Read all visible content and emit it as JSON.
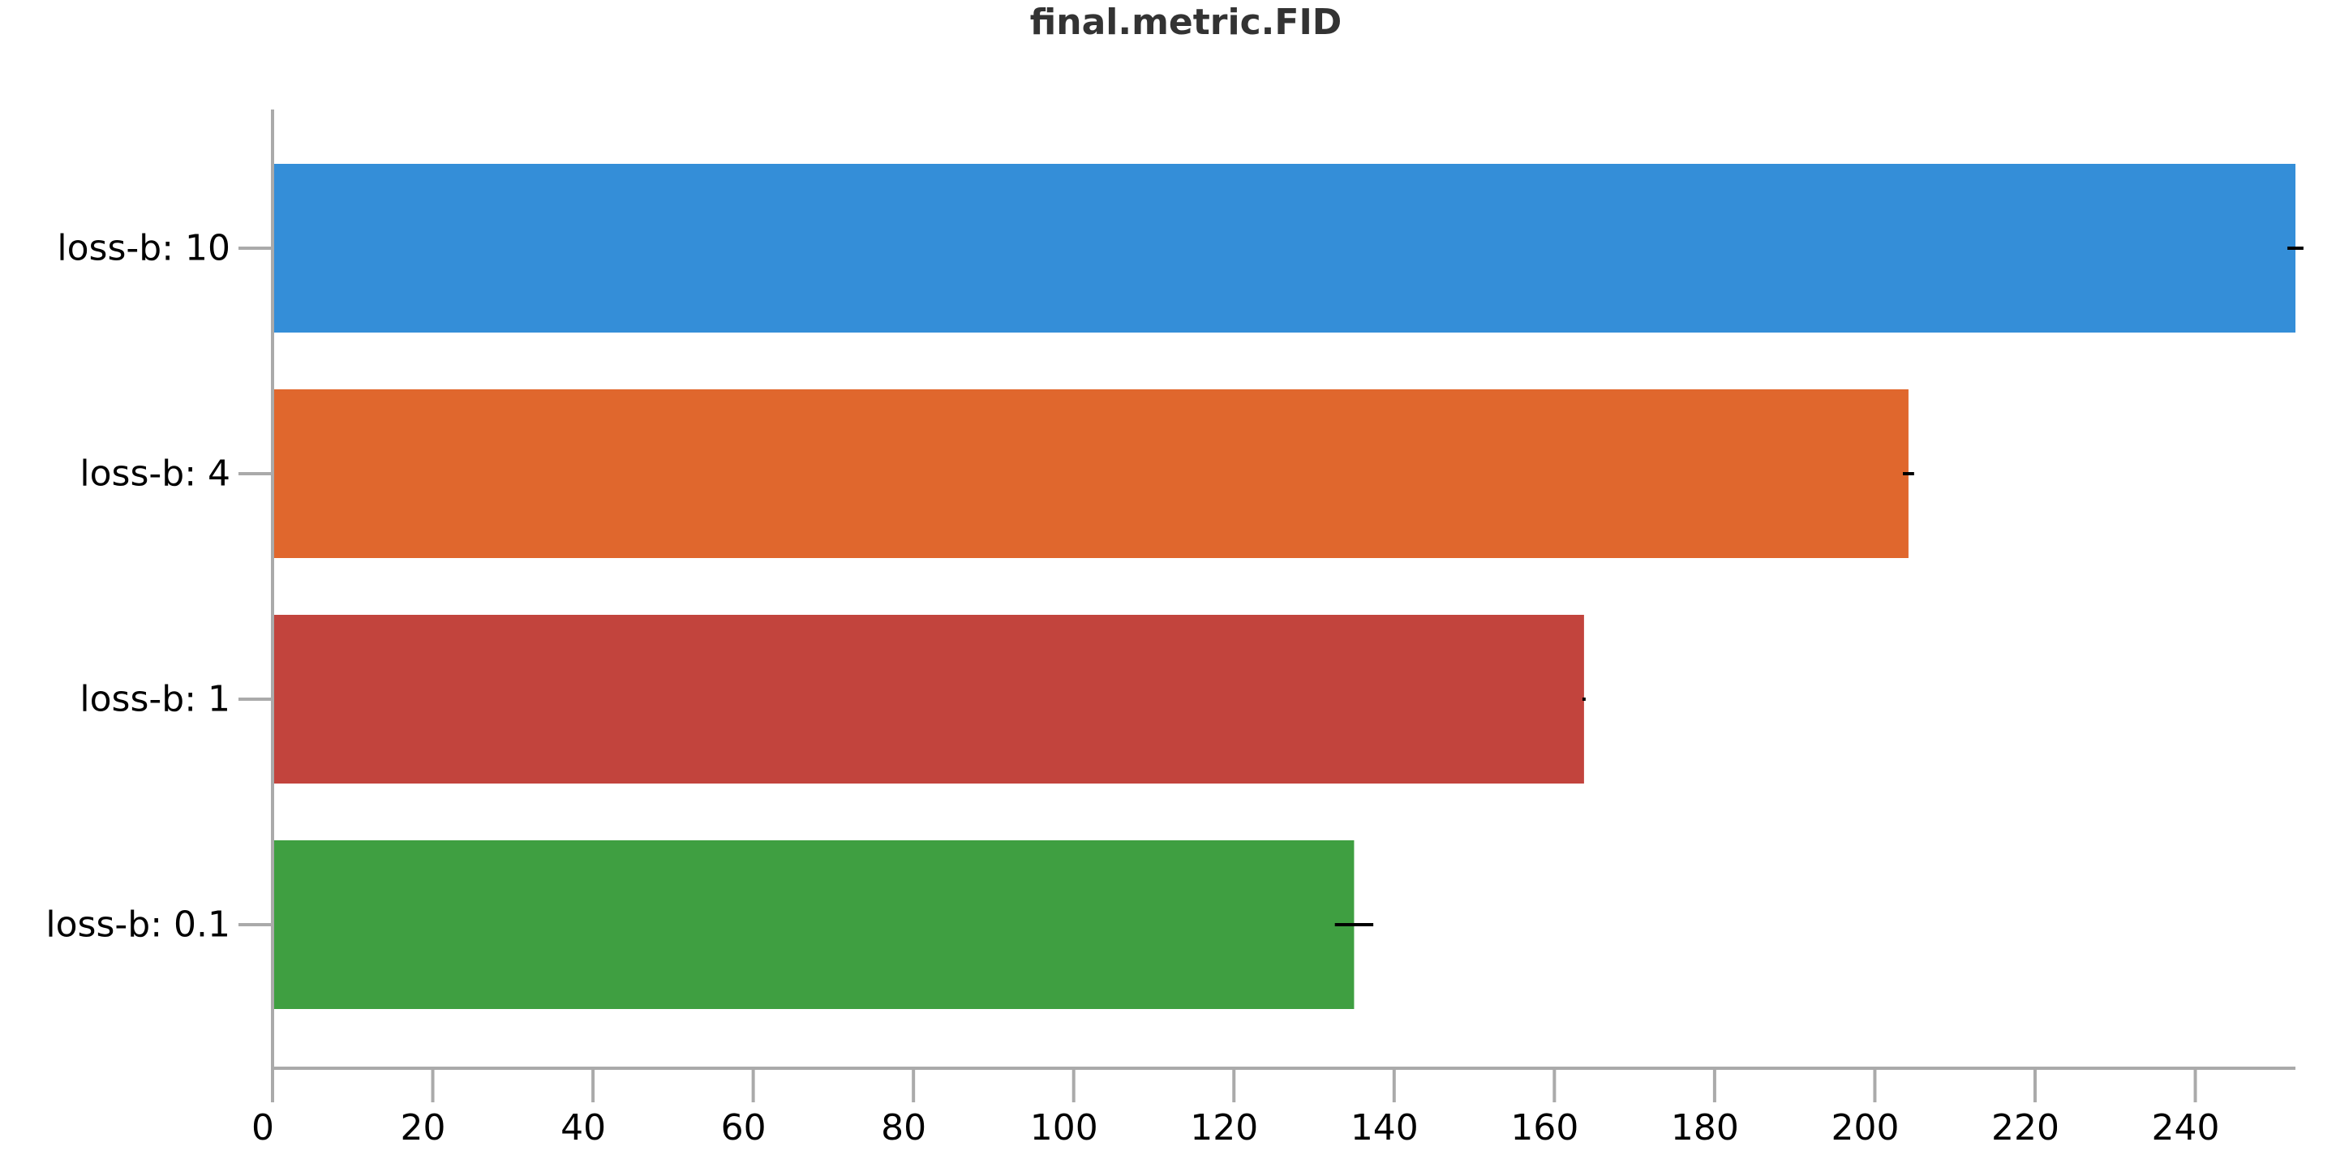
{
  "chart_data": {
    "type": "bar",
    "orientation": "horizontal",
    "title": "final.metric.FID",
    "xlabel": "",
    "ylabel": "",
    "categories": [
      "loss-b: 10",
      "loss-b: 4",
      "loss-b: 1",
      "loss-b: 0.1"
    ],
    "values": [
      252.5,
      204.2,
      163.7,
      135.0
    ],
    "error": [
      1.0,
      0.7,
      0.2,
      2.4
    ],
    "colors": [
      "#348ed8",
      "#e0672d",
      "#c2443d",
      "#3f9f41"
    ],
    "error_bar_color": "#000000",
    "axis_color": "#aaaaaa",
    "xlim": [
      0,
      252.5
    ],
    "xticks": [
      0,
      20,
      40,
      60,
      80,
      100,
      120,
      140,
      160,
      180,
      200,
      220,
      240
    ],
    "grid": false,
    "legend": "none"
  }
}
